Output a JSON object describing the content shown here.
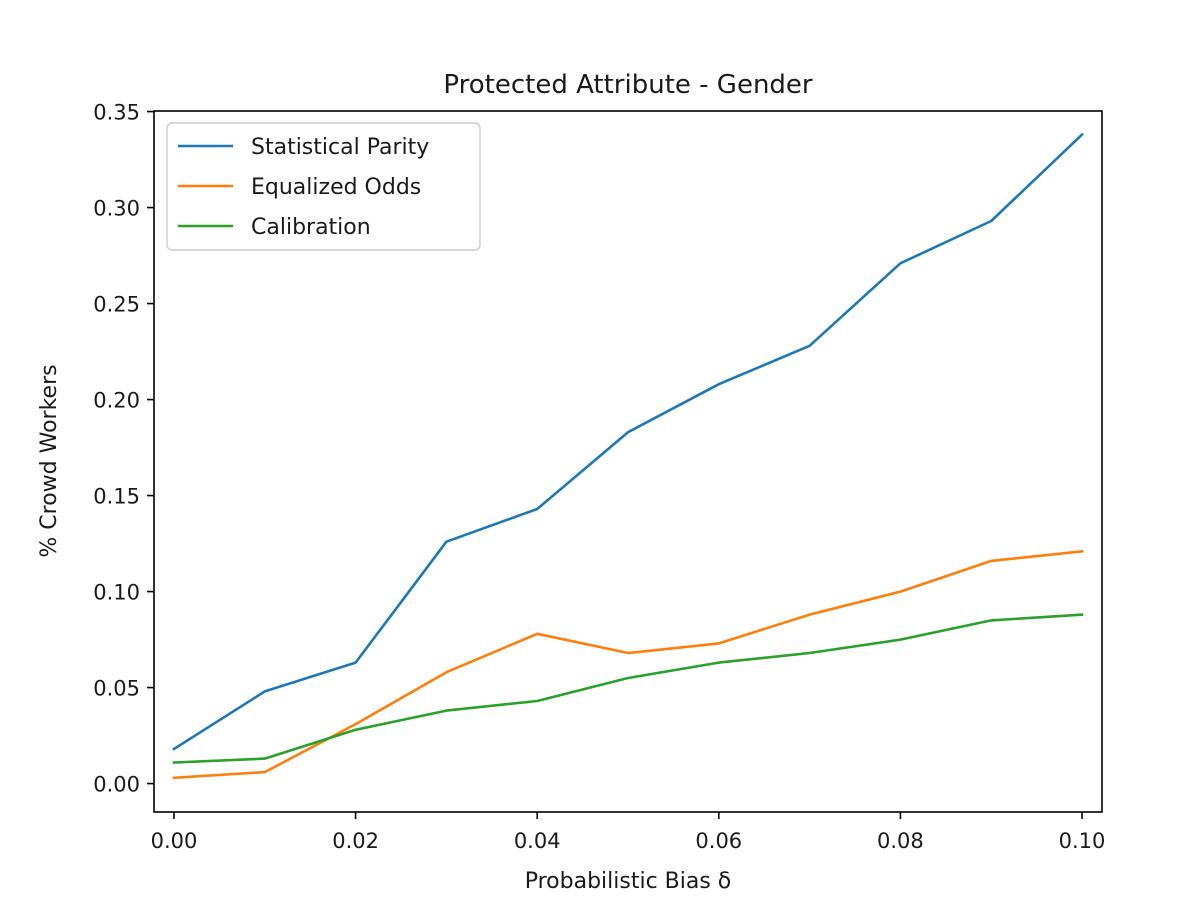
{
  "chart_data": {
    "type": "line",
    "title": "Protected Attribute - Gender",
    "xlabel": "Probabilistic Bias δ",
    "ylabel": "% Crowd Workers",
    "x": [
      0.0,
      0.01,
      0.02,
      0.03,
      0.04,
      0.05,
      0.06,
      0.07,
      0.08,
      0.09,
      0.1
    ],
    "xlim": [
      -0.0022,
      0.1022
    ],
    "ylim": [
      -0.0148,
      0.3503
    ],
    "x_ticks": [
      0.0,
      0.02,
      0.04,
      0.06,
      0.08,
      0.1
    ],
    "x_tick_labels": [
      "0.00",
      "0.02",
      "0.04",
      "0.06",
      "0.08",
      "0.10"
    ],
    "y_ticks": [
      0.0,
      0.05,
      0.1,
      0.15,
      0.2,
      0.25,
      0.3,
      0.35
    ],
    "y_tick_labels": [
      "0.00",
      "0.05",
      "0.10",
      "0.15",
      "0.20",
      "0.25",
      "0.30",
      "0.35"
    ],
    "grid": false,
    "legend_position": "top-left",
    "series": [
      {
        "name": "Statistical Parity",
        "color": "#1f77b4",
        "values": [
          0.018,
          0.048,
          0.063,
          0.126,
          0.143,
          0.183,
          0.208,
          0.228,
          0.271,
          0.293,
          0.338
        ]
      },
      {
        "name": "Equalized Odds",
        "color": "#ff7f0e",
        "values": [
          0.003,
          0.006,
          0.031,
          0.058,
          0.078,
          0.068,
          0.073,
          0.088,
          0.1,
          0.116,
          0.121
        ]
      },
      {
        "name": "Calibration",
        "color": "#2ca02c",
        "values": [
          0.011,
          0.013,
          0.028,
          0.038,
          0.043,
          0.055,
          0.063,
          0.068,
          0.075,
          0.085,
          0.088
        ]
      }
    ]
  }
}
